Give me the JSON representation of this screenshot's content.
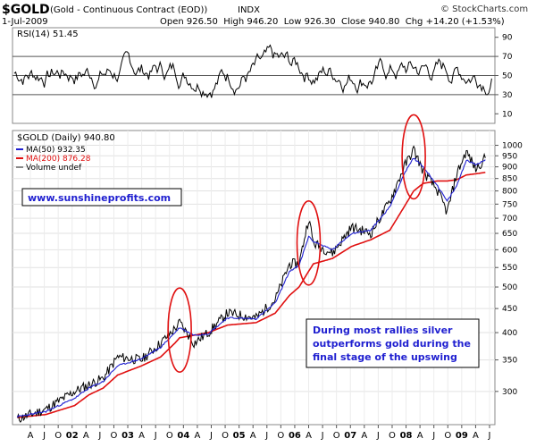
{
  "header": {
    "symbol": "$GOLD",
    "name": "(Gold - Continuous Contract (EOD))",
    "exchange": "INDX",
    "date": "1-Jul-2009",
    "quote": "Open 926.50  High 946.20  Low 926.30  Close 940.80  Chg +14.20 (+1.53%)",
    "brand": "© StockCharts.com"
  },
  "rsi_panel": {
    "label": "RSI(14) 51.45",
    "ticks": [
      "90",
      "70",
      "50",
      "30",
      "10"
    ]
  },
  "price_panel": {
    "label": "$GOLD (Daily) 940.80",
    "legend": [
      {
        "label": "MA(50) 932.35",
        "color": "#1f1fd0"
      },
      {
        "label": "MA(200) 876.28",
        "color": "#e01010"
      },
      {
        "label": "Volume undef",
        "color": "#888888"
      }
    ],
    "watermark": "www.sunshineprofits.com",
    "annotation": [
      "During most rallies silver",
      "outperforms gold during the",
      "final stage of the upswing"
    ]
  },
  "x_axis": {
    "labels": [
      "A",
      "J",
      "O",
      "02",
      "A",
      "J",
      "O",
      "03",
      "A",
      "J",
      "O",
      "04",
      "A",
      "J",
      "O",
      "05",
      "A",
      "J",
      "O",
      "06",
      "A",
      "J",
      "O",
      "07",
      "A",
      "J",
      "O",
      "08",
      "A",
      "J",
      "O",
      "09",
      "A",
      "J"
    ]
  },
  "colors": {
    "price": "#000000",
    "ma50": "#1f1fd0",
    "ma200": "#e01010",
    "ellipse": "#e01010",
    "annotation_text": "#1f1fd0",
    "watermark_text": "#1f1fd0"
  },
  "chart_data": [
    {
      "type": "line",
      "name": "RSI(14)",
      "ylim": [
        0,
        100
      ],
      "reference_lines": [
        30,
        50,
        70
      ],
      "series": [
        {
          "name": "RSI(14)",
          "last": 51.45
        }
      ]
    },
    {
      "type": "line",
      "name": "$GOLD (Daily)",
      "y_scale": "log",
      "ylim": [
        255,
        1075
      ],
      "yticks": [
        300,
        350,
        400,
        450,
        500,
        550,
        600,
        650,
        700,
        750,
        800,
        850,
        900,
        950,
        1000
      ],
      "x": [
        "2001-04",
        "2001-10",
        "2002-04",
        "2002-07",
        "2002-10",
        "2003-01",
        "2003-06",
        "2003-10",
        "2004-01",
        "2004-02",
        "2004-05",
        "2004-08",
        "2004-12",
        "2005-06",
        "2005-10",
        "2006-01",
        "2006-03",
        "2006-05",
        "2006-06",
        "2006-10",
        "2007-02",
        "2007-06",
        "2007-10",
        "2008-01",
        "2008-03",
        "2008-05",
        "2008-08",
        "2008-10",
        "2008-12",
        "2009-02",
        "2009-04",
        "2009-06"
      ],
      "series": [
        {
          "name": "$GOLD",
          "values": [
            262,
            275,
            300,
            310,
            320,
            355,
            350,
            380,
            408,
            420,
            380,
            400,
            440,
            430,
            470,
            560,
            560,
            700,
            620,
            590,
            670,
            650,
            760,
            900,
            980,
            880,
            800,
            720,
            870,
            970,
            890,
            940
          ]
        },
        {
          "name": "MA(50)",
          "values": [
            265,
            272,
            290,
            305,
            315,
            340,
            352,
            372,
            400,
            410,
            395,
            398,
            430,
            428,
            462,
            540,
            555,
            640,
            625,
            600,
            650,
            660,
            740,
            870,
            940,
            900,
            820,
            760,
            820,
            930,
            910,
            932
          ]
        },
        {
          "name": "MA(200)",
          "values": [
            264,
            268,
            280,
            295,
            305,
            325,
            340,
            355,
            380,
            390,
            395,
            400,
            415,
            420,
            440,
            480,
            500,
            540,
            560,
            575,
            610,
            630,
            660,
            740,
            800,
            830,
            840,
            840,
            845,
            865,
            870,
            876
          ]
        }
      ],
      "highlights": [
        {
          "center": "2004-02",
          "value": 405
        },
        {
          "center": "2006-05",
          "value": 620
        },
        {
          "center": "2008-03",
          "value": 945
        }
      ]
    }
  ]
}
